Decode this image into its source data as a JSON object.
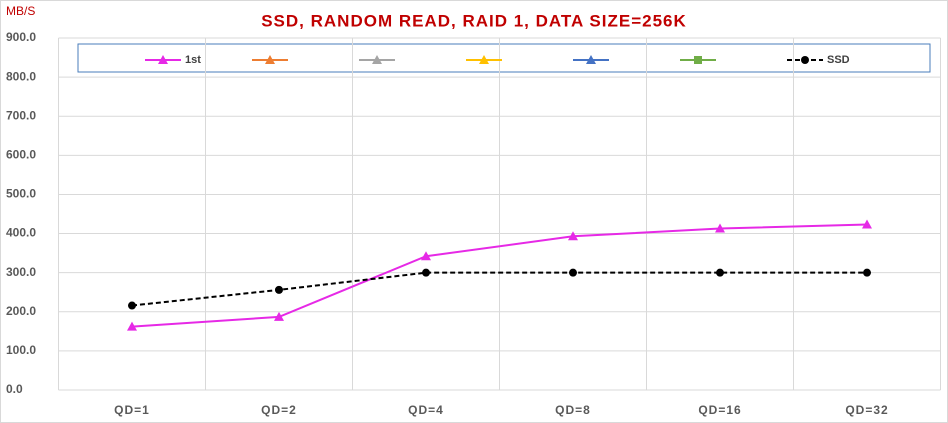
{
  "chart_data": {
    "type": "line",
    "title": "SSD, RANDOM READ, RAID 1, DATA SIZE=256K",
    "y_label": "MB/S",
    "categories": [
      "QD=1",
      "QD=2",
      "QD=4",
      "QD=8",
      "QD=16",
      "QD=32"
    ],
    "series": [
      {
        "name": "1st",
        "color": "#e629e6",
        "marker": "triangle",
        "values": [
          162,
          187,
          342,
          393,
          413,
          423
        ]
      },
      {
        "color": "#ed7d31",
        "marker": "triangle",
        "values": [
          null,
          null,
          null,
          null,
          null,
          null
        ]
      },
      {
        "color": "#a5a5a5",
        "marker": "triangle",
        "values": [
          null,
          null,
          null,
          null,
          null,
          null
        ]
      },
      {
        "color": "#ffc000",
        "marker": "triangle",
        "values": [
          null,
          null,
          null,
          null,
          null,
          null
        ]
      },
      {
        "color": "#4472c4",
        "marker": "triangle",
        "values": [
          null,
          null,
          null,
          null,
          null,
          null
        ]
      },
      {
        "color": "#70ad47",
        "marker": "square",
        "values": [
          null,
          null,
          null,
          null,
          null,
          null
        ]
      },
      {
        "name": "SSD",
        "color": "#000000",
        "marker": "circle",
        "dashed": true,
        "values": [
          216,
          256,
          300,
          300,
          300,
          300
        ]
      }
    ],
    "ylim": [
      0,
      900
    ],
    "yticks": [
      {
        "value": 0,
        "label": "0.0"
      },
      {
        "value": 100,
        "label": "100.0"
      },
      {
        "value": 200,
        "label": "200.0"
      },
      {
        "value": 300,
        "label": "300.0"
      },
      {
        "value": 400,
        "label": "400.0"
      },
      {
        "value": 500,
        "label": "500.0"
      },
      {
        "value": 600,
        "label": "600.0"
      },
      {
        "value": 700,
        "label": "700.0"
      },
      {
        "value": 800,
        "label": "800.0"
      },
      {
        "value": 900,
        "label": "900.0"
      }
    ],
    "grid": true
  }
}
